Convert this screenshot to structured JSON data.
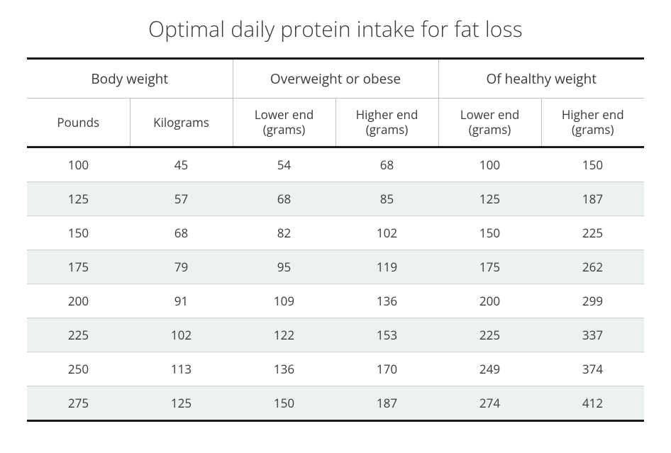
{
  "title": "Optimal daily protein intake for fat loss",
  "table": {
    "type": "table",
    "background_color": "#ffffff",
    "stripe_color": "#ecf2f2",
    "border_heavy_color": "#1a1a1a",
    "border_light_color": "#bfbfbf",
    "text_color": "#3a3a3a",
    "title_fontsize": 30,
    "header_group_fontsize": 19,
    "header_sub_fontsize": 17,
    "cell_fontsize": 17,
    "groups": [
      {
        "label": "Body weight",
        "span": 2
      },
      {
        "label": "Overweight or obese",
        "span": 2
      },
      {
        "label": "Of healthy weight",
        "span": 2
      }
    ],
    "columns": [
      {
        "label": "Pounds"
      },
      {
        "label": "Kilograms"
      },
      {
        "label": "Lower end (grams)"
      },
      {
        "label": "Higher end (grams)"
      },
      {
        "label": "Lower end (grams)"
      },
      {
        "label": "Higher end (grams)"
      }
    ],
    "rows": [
      [
        "100",
        "45",
        "54",
        "68",
        "100",
        "150"
      ],
      [
        "125",
        "57",
        "68",
        "85",
        "125",
        "187"
      ],
      [
        "150",
        "68",
        "82",
        "102",
        "150",
        "225"
      ],
      [
        "175",
        "79",
        "95",
        "119",
        "175",
        "262"
      ],
      [
        "200",
        "91",
        "109",
        "136",
        "200",
        "299"
      ],
      [
        "225",
        "102",
        "122",
        "153",
        "225",
        "337"
      ],
      [
        "250",
        "113",
        "136",
        "170",
        "249",
        "374"
      ],
      [
        "275",
        "125",
        "150",
        "187",
        "274",
        "412"
      ]
    ]
  }
}
